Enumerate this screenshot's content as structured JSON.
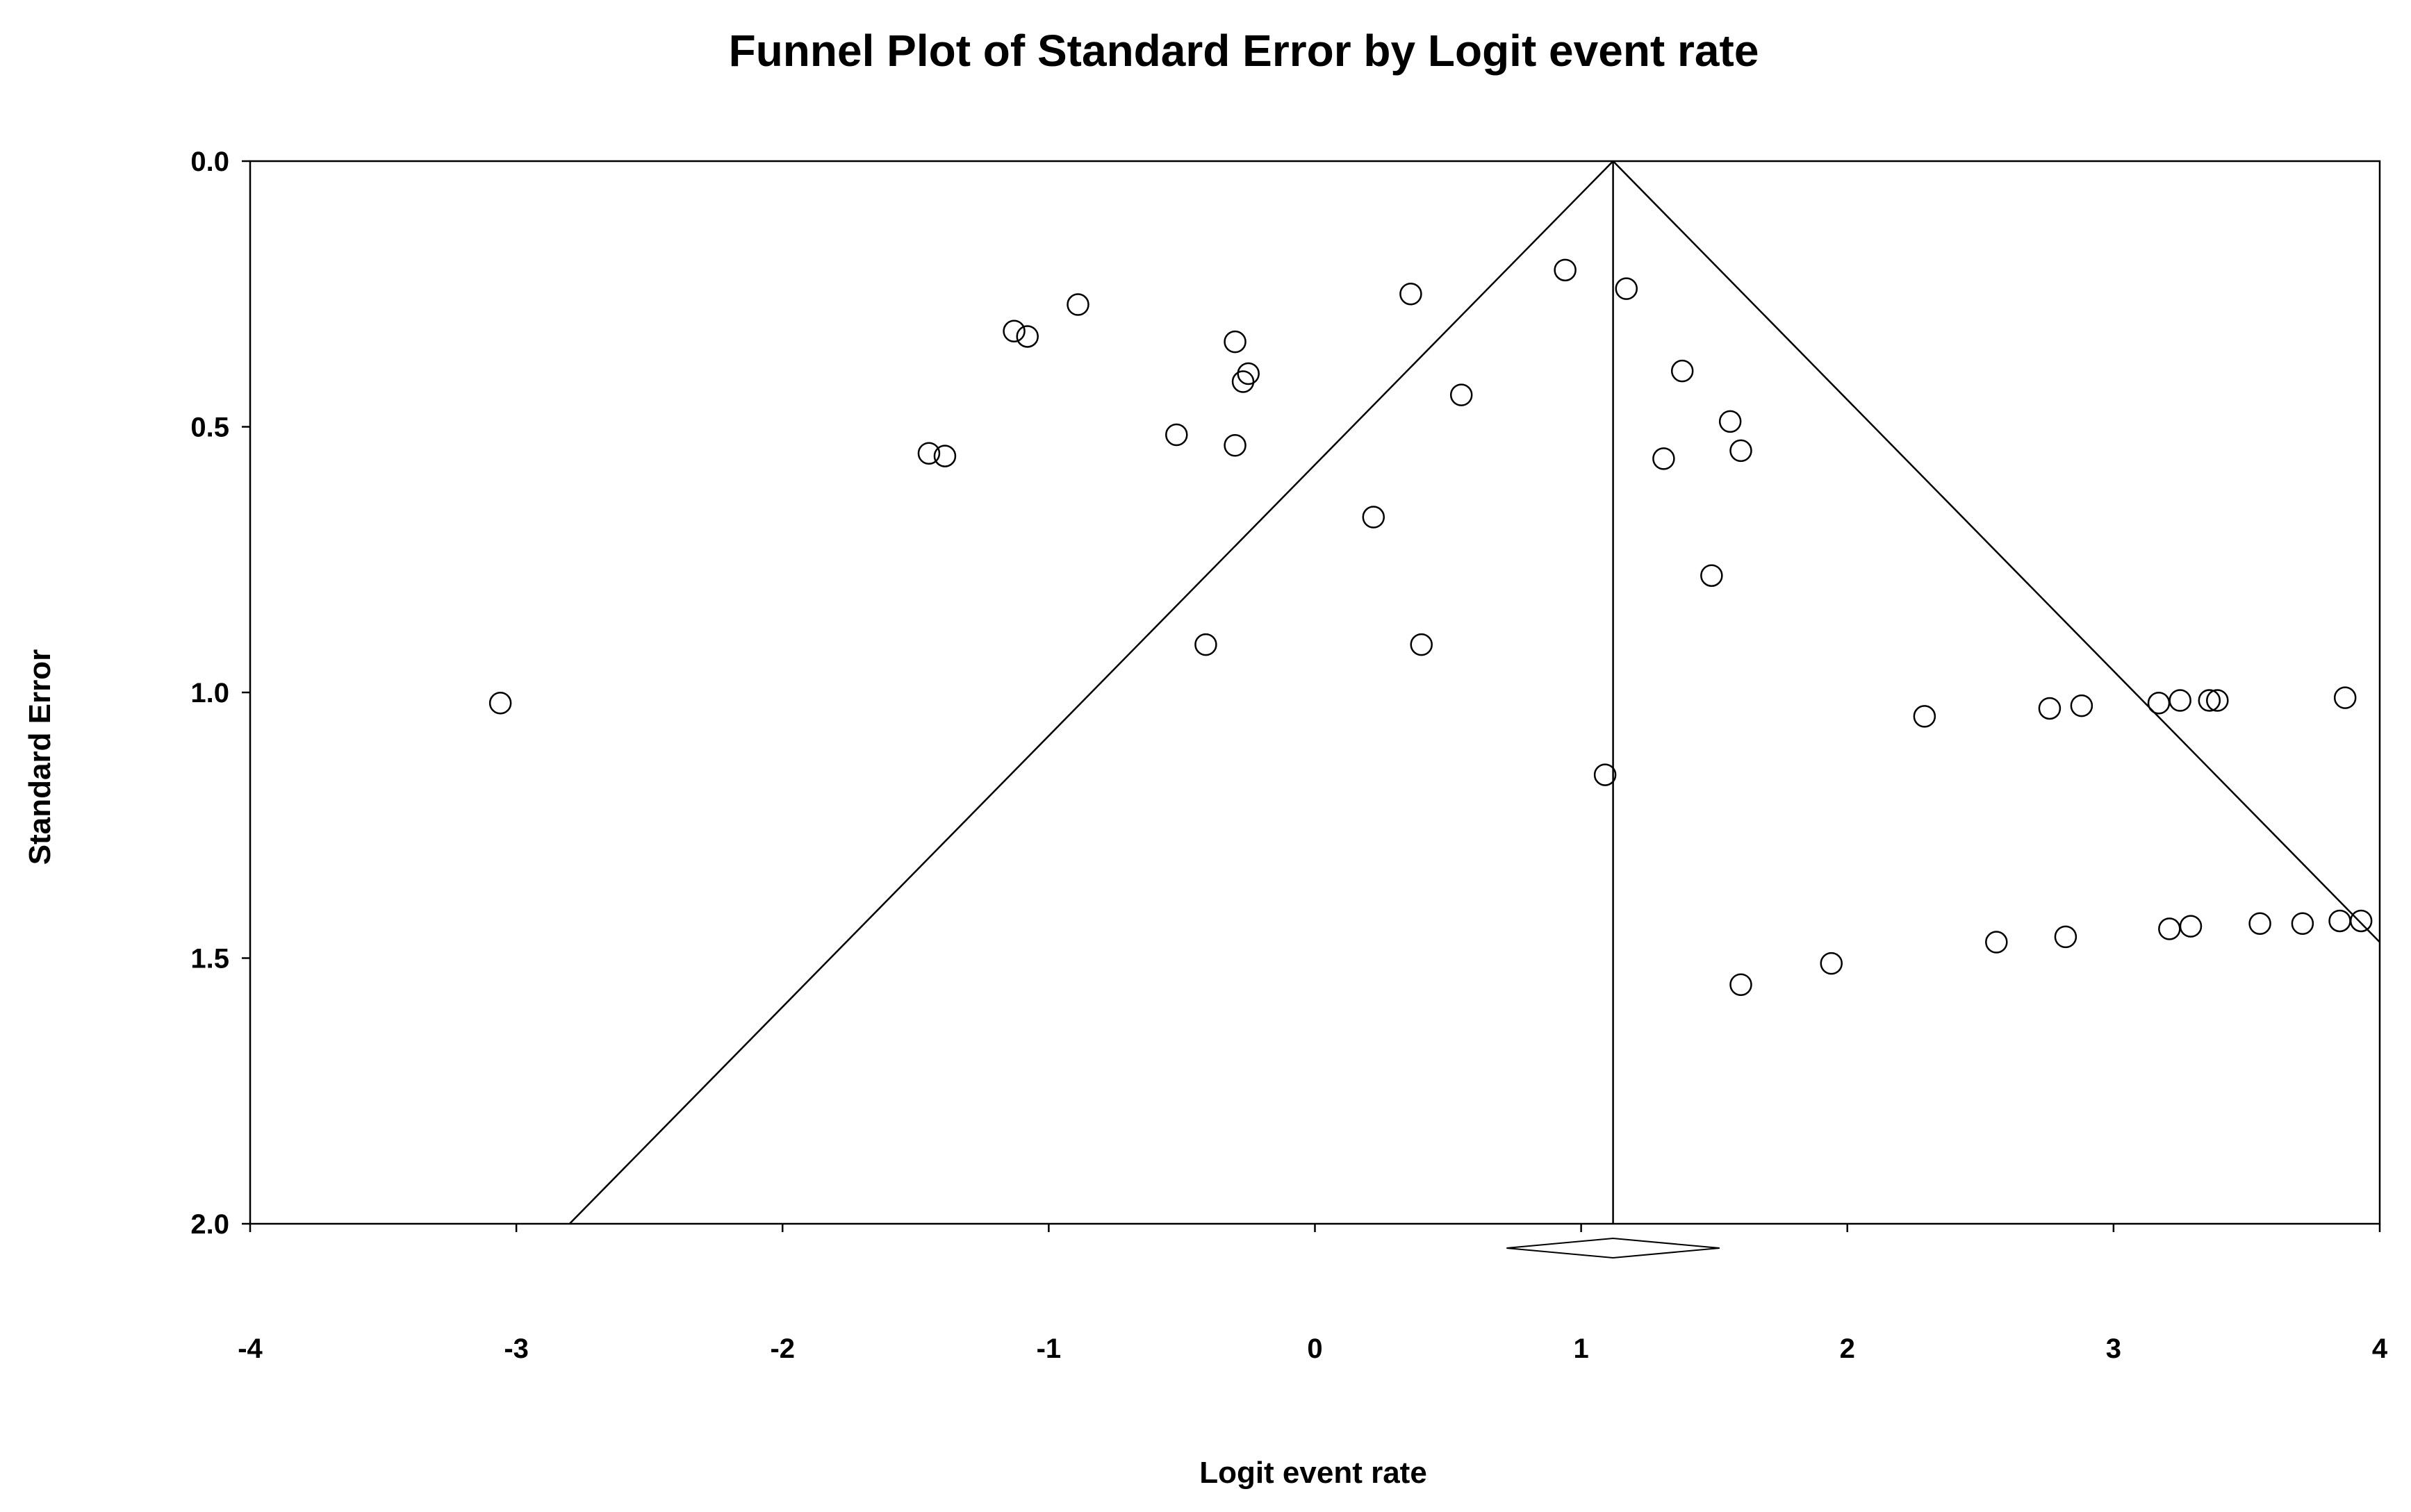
{
  "chart_data": {
    "type": "scatter",
    "title": "Funnel Plot of Standard Error by Logit event rate",
    "xlabel": "Logit event rate",
    "ylabel": "Standard Error",
    "xlim": [
      -4,
      4
    ],
    "ylim": [
      0,
      2
    ],
    "y_inverted": true,
    "x_ticks": [
      {
        "value": -4,
        "label": "-4"
      },
      {
        "value": -3,
        "label": "-3"
      },
      {
        "value": -2,
        "label": "-2"
      },
      {
        "value": -1,
        "label": "-1"
      },
      {
        "value": 0,
        "label": "0"
      },
      {
        "value": 1,
        "label": "1"
      },
      {
        "value": 2,
        "label": "2"
      },
      {
        "value": 3,
        "label": "3"
      },
      {
        "value": 4,
        "label": "4"
      }
    ],
    "y_ticks": [
      {
        "value": 0,
        "label": "0.0"
      },
      {
        "value": 0.5,
        "label": "0.5"
      },
      {
        "value": 1.0,
        "label": "1.0"
      },
      {
        "value": 1.5,
        "label": "1.5"
      },
      {
        "value": 2.0,
        "label": "2.0"
      }
    ],
    "grid": false,
    "legend": "none",
    "pooled_estimate": 1.12,
    "funnel_edges": {
      "left": [
        [
          1.12,
          0
        ],
        [
          -2.8,
          2.0
        ]
      ],
      "right": [
        [
          1.12,
          0
        ],
        [
          4.0,
          1.47
        ]
      ]
    },
    "summary_diamond": {
      "center": 1.12,
      "low": 0.72,
      "high": 1.52
    },
    "points": [
      {
        "x": -3.06,
        "y": 1.02
      },
      {
        "x": -1.45,
        "y": 0.55
      },
      {
        "x": -1.39,
        "y": 0.555
      },
      {
        "x": -1.13,
        "y": 0.32
      },
      {
        "x": -1.08,
        "y": 0.33
      },
      {
        "x": -0.89,
        "y": 0.27
      },
      {
        "x": -0.52,
        "y": 0.515
      },
      {
        "x": -0.41,
        "y": 0.91
      },
      {
        "x": -0.3,
        "y": 0.34
      },
      {
        "x": -0.3,
        "y": 0.535
      },
      {
        "x": -0.27,
        "y": 0.415
      },
      {
        "x": -0.25,
        "y": 0.4
      },
      {
        "x": 0.22,
        "y": 0.67
      },
      {
        "x": 0.36,
        "y": 0.25
      },
      {
        "x": 0.4,
        "y": 0.91
      },
      {
        "x": 0.55,
        "y": 0.44
      },
      {
        "x": 0.94,
        "y": 0.205
      },
      {
        "x": 1.09,
        "y": 1.155
      },
      {
        "x": 1.17,
        "y": 0.24
      },
      {
        "x": 1.31,
        "y": 0.56
      },
      {
        "x": 1.38,
        "y": 0.395
      },
      {
        "x": 1.49,
        "y": 0.78
      },
      {
        "x": 1.56,
        "y": 0.49
      },
      {
        "x": 1.6,
        "y": 0.545
      },
      {
        "x": 1.6,
        "y": 1.55
      },
      {
        "x": 1.94,
        "y": 1.51
      },
      {
        "x": 2.29,
        "y": 1.045
      },
      {
        "x": 2.56,
        "y": 1.47
      },
      {
        "x": 2.76,
        "y": 1.03
      },
      {
        "x": 2.82,
        "y": 1.46
      },
      {
        "x": 2.88,
        "y": 1.025
      },
      {
        "x": 3.17,
        "y": 1.02
      },
      {
        "x": 3.21,
        "y": 1.445
      },
      {
        "x": 3.25,
        "y": 1.015
      },
      {
        "x": 3.29,
        "y": 1.44
      },
      {
        "x": 3.36,
        "y": 1.015
      },
      {
        "x": 3.39,
        "y": 1.015
      },
      {
        "x": 3.55,
        "y": 1.435
      },
      {
        "x": 3.71,
        "y": 1.435
      },
      {
        "x": 3.85,
        "y": 1.43
      },
      {
        "x": 3.87,
        "y": 1.01
      },
      {
        "x": 3.93,
        "y": 1.43
      }
    ]
  }
}
